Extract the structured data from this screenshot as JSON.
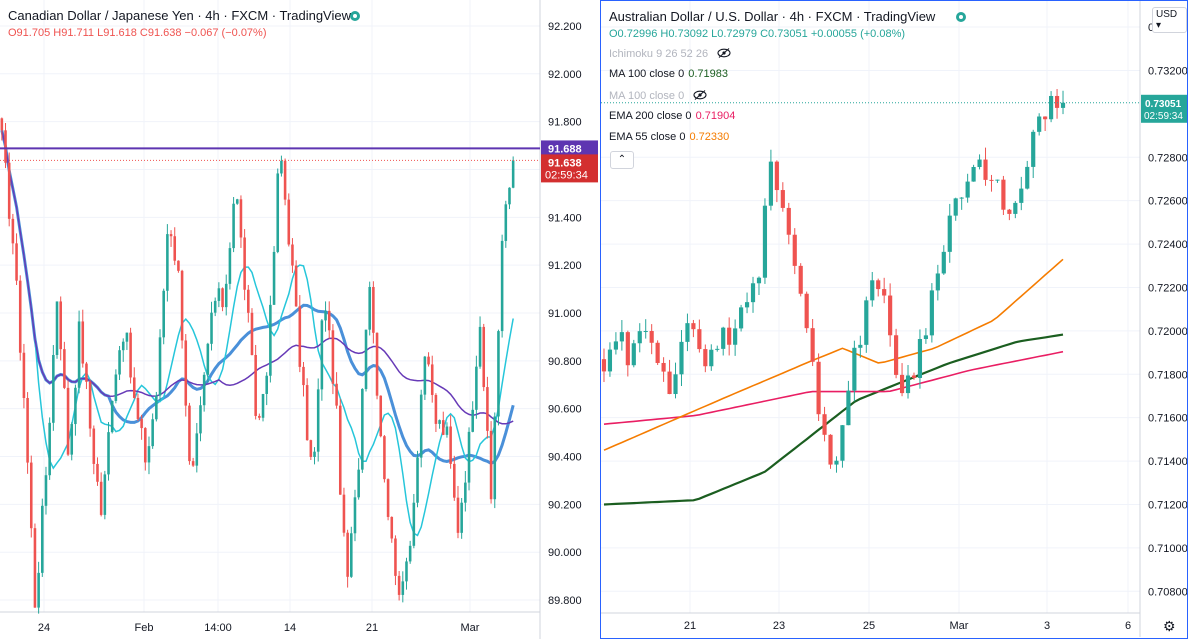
{
  "charts": {
    "left": {
      "title": "Canadian Dollar / Japanese Yen · 4h · FXCM · TradingView",
      "ohlc": "O91.705 H91.711 L91.618 C91.638 −0.067 (−0.07%)",
      "price_scale_labels": [
        "92.200",
        "92.000",
        "91.800",
        "91.600",
        "91.400",
        "91.200",
        "91.000",
        "90.800",
        "90.600",
        "90.400",
        "90.200",
        "90.000",
        "89.800"
      ],
      "time_labels": [
        "24",
        "Feb",
        "14:00",
        "14",
        "21",
        "Mar"
      ],
      "purple_line_label": "91.688",
      "price_label": "91.638",
      "countdown": "02:59:34"
    },
    "right": {
      "title": "Australian Dollar / U.S. Dollar · 4h · FXCM · TradingView",
      "ohlc": "O0.72996 H0.73092 L0.72979 C0.73051 +0.00055 (+0.08%)",
      "indicators": [
        {
          "name": "Ichimoku 9 26 52 26",
          "value": "",
          "color": "#b2b5be",
          "hidden": true
        },
        {
          "name": "MA 100 close 0",
          "value": "0.71983",
          "color": "#1b5e20",
          "hidden": false
        },
        {
          "name": "MA 100 close 0",
          "value": "",
          "color": "#b2b5be",
          "hidden": true
        },
        {
          "name": "EMA 200 close 0",
          "value": "0.71904",
          "color": "#e91e63",
          "hidden": false
        },
        {
          "name": "EMA 55 close 0",
          "value": "0.72330",
          "color": "#f57c00",
          "hidden": false
        }
      ],
      "collapse_symbol": "⌃",
      "currency_button": "USD",
      "price_scale_labels": [
        "0.73400",
        "0.73200",
        "0.72800",
        "0.72600",
        "0.72400",
        "0.72200",
        "0.72000",
        "0.71800",
        "0.71600",
        "0.71400",
        "0.71200",
        "0.71000",
        "0.70800"
      ],
      "time_labels": [
        "21",
        "23",
        "25",
        "Mar",
        "3",
        "6"
      ],
      "price_label": "0.73051",
      "countdown": "02:59:34",
      "gear_icon": "⚙"
    }
  },
  "chart_data": [
    {
      "type": "candlestick",
      "title": "Canadian Dollar / Japanese Yen · 4h · FXCM · TradingView",
      "ylim": [
        89.75,
        92.25
      ],
      "y_ticks": [
        92.2,
        92.0,
        91.8,
        91.6,
        91.4,
        91.2,
        91.0,
        90.8,
        90.6,
        90.4,
        90.2,
        90.0,
        89.8
      ],
      "x_ticks": [
        "24",
        "Feb",
        "14:00",
        "14",
        "21",
        "Mar"
      ],
      "n_bars": 140,
      "anchors": [
        91.72,
        91.3,
        90.65,
        89.78,
        90.35,
        91.1,
        90.4,
        90.95,
        90.5,
        90.15,
        90.72,
        90.95,
        90.6,
        90.38,
        90.7,
        91.42,
        91.12,
        90.25,
        90.62,
        91.05,
        91.05,
        91.55,
        91.05,
        90.5,
        90.85,
        91.7,
        91.25,
        90.7,
        90.3,
        91.1,
        90.65,
        89.85,
        90.3,
        91.2,
        90.55,
        90.05,
        89.8,
        90.18,
        90.85,
        90.55,
        90.5,
        90.1,
        90.45,
        91.0,
        90.2,
        91.3,
        91.638
      ],
      "series": [
        {
          "name": "",
          "color": "#4a90d9",
          "period": 30
        },
        {
          "name": "",
          "color": "#26c6da",
          "period": 10
        },
        {
          "name": "",
          "color": "#673ab7",
          "period": 60
        }
      ],
      "horizontal_line": 91.688,
      "last_price": 91.638,
      "colors": {
        "up": "#26a69a",
        "down": "#ef5350"
      }
    },
    {
      "type": "candlestick",
      "title": "Australian Dollar / U.S. Dollar · 4h · FXCM · TradingView",
      "ylim": [
        0.707,
        0.7352
      ],
      "y_ticks": [
        0.734,
        0.732,
        0.728,
        0.726,
        0.724,
        0.722,
        0.72,
        0.718,
        0.716,
        0.714,
        0.712,
        0.71,
        0.708
      ],
      "x_ticks": [
        "21",
        "23",
        "25",
        "Mar",
        "3",
        "6"
      ],
      "n_bars": 78,
      "anchors": [
        0.7183,
        0.7186,
        0.7196,
        0.7192,
        0.7183,
        0.7198,
        0.7195,
        0.7198,
        0.7191,
        0.7185,
        0.7172,
        0.719,
        0.72,
        0.7196,
        0.7193,
        0.719,
        0.7193,
        0.7195,
        0.7198,
        0.72,
        0.7203,
        0.7213,
        0.7222,
        0.7225,
        0.726,
        0.7282,
        0.7263,
        0.7248,
        0.724,
        0.7222,
        0.7205,
        0.7178,
        0.716,
        0.7148,
        0.7142,
        0.715,
        0.7165,
        0.7185,
        0.72,
        0.7215,
        0.7228,
        0.7222,
        0.72,
        0.7185,
        0.7175,
        0.7178,
        0.7185,
        0.7195,
        0.7205,
        0.7225,
        0.724,
        0.7248,
        0.726,
        0.7262,
        0.727,
        0.7275,
        0.7272,
        0.7268,
        0.7265,
        0.7262,
        0.7258,
        0.7255,
        0.7265,
        0.728,
        0.729,
        0.7302,
        0.7305,
        0.73,
        0.7305
      ],
      "series": [
        {
          "name": "MA 100 close 0",
          "color": "#1b5e20",
          "values": [
            [
              0,
              0.712
            ],
            [
              0.2,
              0.7122
            ],
            [
              0.35,
              0.7135
            ],
            [
              0.55,
              0.7168
            ],
            [
              0.75,
              0.7185
            ],
            [
              0.9,
              0.7195
            ],
            [
              1,
              0.71983
            ]
          ]
        },
        {
          "name": "EMA 200 close 0",
          "color": "#e91e63",
          "values": [
            [
              0,
              0.7157
            ],
            [
              0.2,
              0.7161
            ],
            [
              0.45,
              0.7172
            ],
            [
              0.62,
              0.7172
            ],
            [
              0.8,
              0.7182
            ],
            [
              1,
              0.71904
            ]
          ]
        },
        {
          "name": "EMA 55 close 0",
          "color": "#f57c00",
          "values": [
            [
              0,
              0.7145
            ],
            [
              0.25,
              0.7168
            ],
            [
              0.45,
              0.7186
            ],
            [
              0.52,
              0.7192
            ],
            [
              0.6,
              0.7185
            ],
            [
              0.72,
              0.7192
            ],
            [
              0.85,
              0.7205
            ],
            [
              1,
              0.7233
            ]
          ]
        }
      ],
      "last_price": 0.73051,
      "colors": {
        "up": "#26a69a",
        "down": "#ef5350"
      }
    }
  ]
}
